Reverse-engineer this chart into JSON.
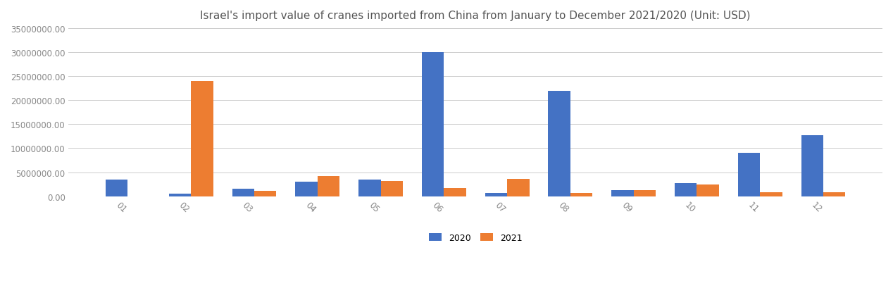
{
  "title": "Israel's import value of cranes imported from China from January to December 2021/2020 (Unit: USD)",
  "months": [
    "01",
    "02",
    "03",
    "04",
    "05",
    "06",
    "07",
    "08",
    "09",
    "10",
    "11",
    "12"
  ],
  "values_2020": [
    3500000,
    500000,
    1500000,
    3000000,
    3500000,
    30000000,
    700000,
    22000000,
    1300000,
    2800000,
    9000000,
    12700000
  ],
  "values_2021": [
    0,
    24000000,
    1100000,
    4200000,
    3200000,
    1700000,
    3600000,
    700000,
    1300000,
    2500000,
    900000,
    900000
  ],
  "color_2020": "#4472C4",
  "color_2021": "#ED7D31",
  "legend_labels": [
    "2020",
    "2021"
  ],
  "ylim": [
    0,
    35000000
  ],
  "yticks": [
    0,
    5000000,
    10000000,
    15000000,
    20000000,
    25000000,
    30000000,
    35000000
  ],
  "background_color": "#FFFFFF",
  "bar_width": 0.35,
  "title_fontsize": 11,
  "tick_fontsize": 8.5,
  "legend_fontsize": 9,
  "xlabel_rotation": -45
}
